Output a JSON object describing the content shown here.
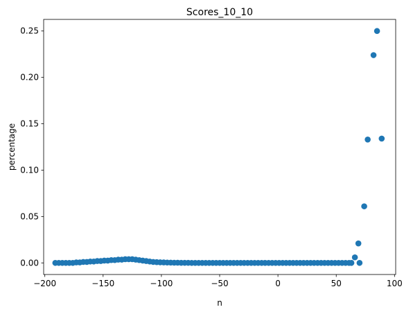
{
  "chart_data": {
    "type": "scatter",
    "title": "Scores_10_10",
    "xlabel": "n",
    "ylabel": "percentage",
    "xlim": [
      -201,
      101
    ],
    "ylim": [
      -0.0125,
      0.2625
    ],
    "xticks": [
      -200,
      -150,
      -100,
      -50,
      0,
      50,
      100
    ],
    "xtick_labels": [
      "−200",
      "−150",
      "−100",
      "−50",
      "0",
      "50",
      "100"
    ],
    "yticks": [
      0.0,
      0.05,
      0.1,
      0.15,
      0.2,
      0.25
    ],
    "ytick_labels": [
      "0.00",
      "0.05",
      "0.10",
      "0.15",
      "0.20",
      "0.25"
    ],
    "grid": false,
    "legend": "none",
    "marker_color": "#1f77b4",
    "series": [
      {
        "x": [
          -191,
          -188,
          -185,
          -182,
          -179,
          -176,
          -173,
          -170,
          -167,
          -164,
          -161,
          -158,
          -155,
          -152,
          -149,
          -146,
          -143,
          -140,
          -137,
          -134,
          -131,
          -128,
          -125,
          -122,
          -119,
          -116,
          -113,
          -110,
          -107,
          -104,
          -101,
          -98,
          -95,
          -92,
          -89,
          -86,
          -83,
          -80,
          -77,
          -74,
          -71,
          -68,
          -65,
          -62,
          -59,
          -56,
          -53,
          -50,
          -47,
          -44,
          -41,
          -38,
          -35,
          -32,
          -29,
          -26,
          -23,
          -20,
          -17,
          -14,
          -11,
          -8,
          -5,
          -2,
          1,
          4,
          7,
          10,
          13,
          16,
          19,
          22,
          25,
          28,
          31,
          34,
          37,
          40,
          43,
          46,
          49,
          52,
          55,
          58,
          61,
          63,
          66,
          69,
          70,
          74,
          77,
          82,
          85,
          89
        ],
        "y": [
          0.0,
          0.0,
          0.0,
          0.0,
          0.0,
          0.0,
          0.0005,
          0.0005,
          0.001,
          0.001,
          0.0015,
          0.0015,
          0.002,
          0.002,
          0.0025,
          0.0025,
          0.003,
          0.003,
          0.0035,
          0.0035,
          0.004,
          0.004,
          0.004,
          0.0035,
          0.003,
          0.0025,
          0.002,
          0.0015,
          0.001,
          0.0008,
          0.0006,
          0.0005,
          0.0004,
          0.0003,
          0.0002,
          0.0002,
          0.0001,
          0.0001,
          0.0001,
          0.0,
          0.0,
          0.0,
          0.0,
          0.0,
          0.0,
          0.0,
          0.0,
          0.0,
          0.0,
          0.0,
          0.0,
          0.0,
          0.0,
          0.0,
          0.0,
          0.0,
          0.0,
          0.0,
          0.0,
          0.0,
          0.0,
          0.0,
          0.0,
          0.0,
          0.0,
          0.0,
          0.0,
          0.0,
          0.0,
          0.0,
          0.0,
          0.0,
          0.0,
          0.0,
          0.0,
          0.0,
          0.0,
          0.0,
          0.0,
          0.0,
          0.0,
          0.0,
          0.0,
          0.0,
          0.0,
          0.0,
          0.006,
          0.021,
          0.0,
          0.061,
          0.133,
          0.224,
          0.25,
          0.134
        ]
      }
    ]
  }
}
